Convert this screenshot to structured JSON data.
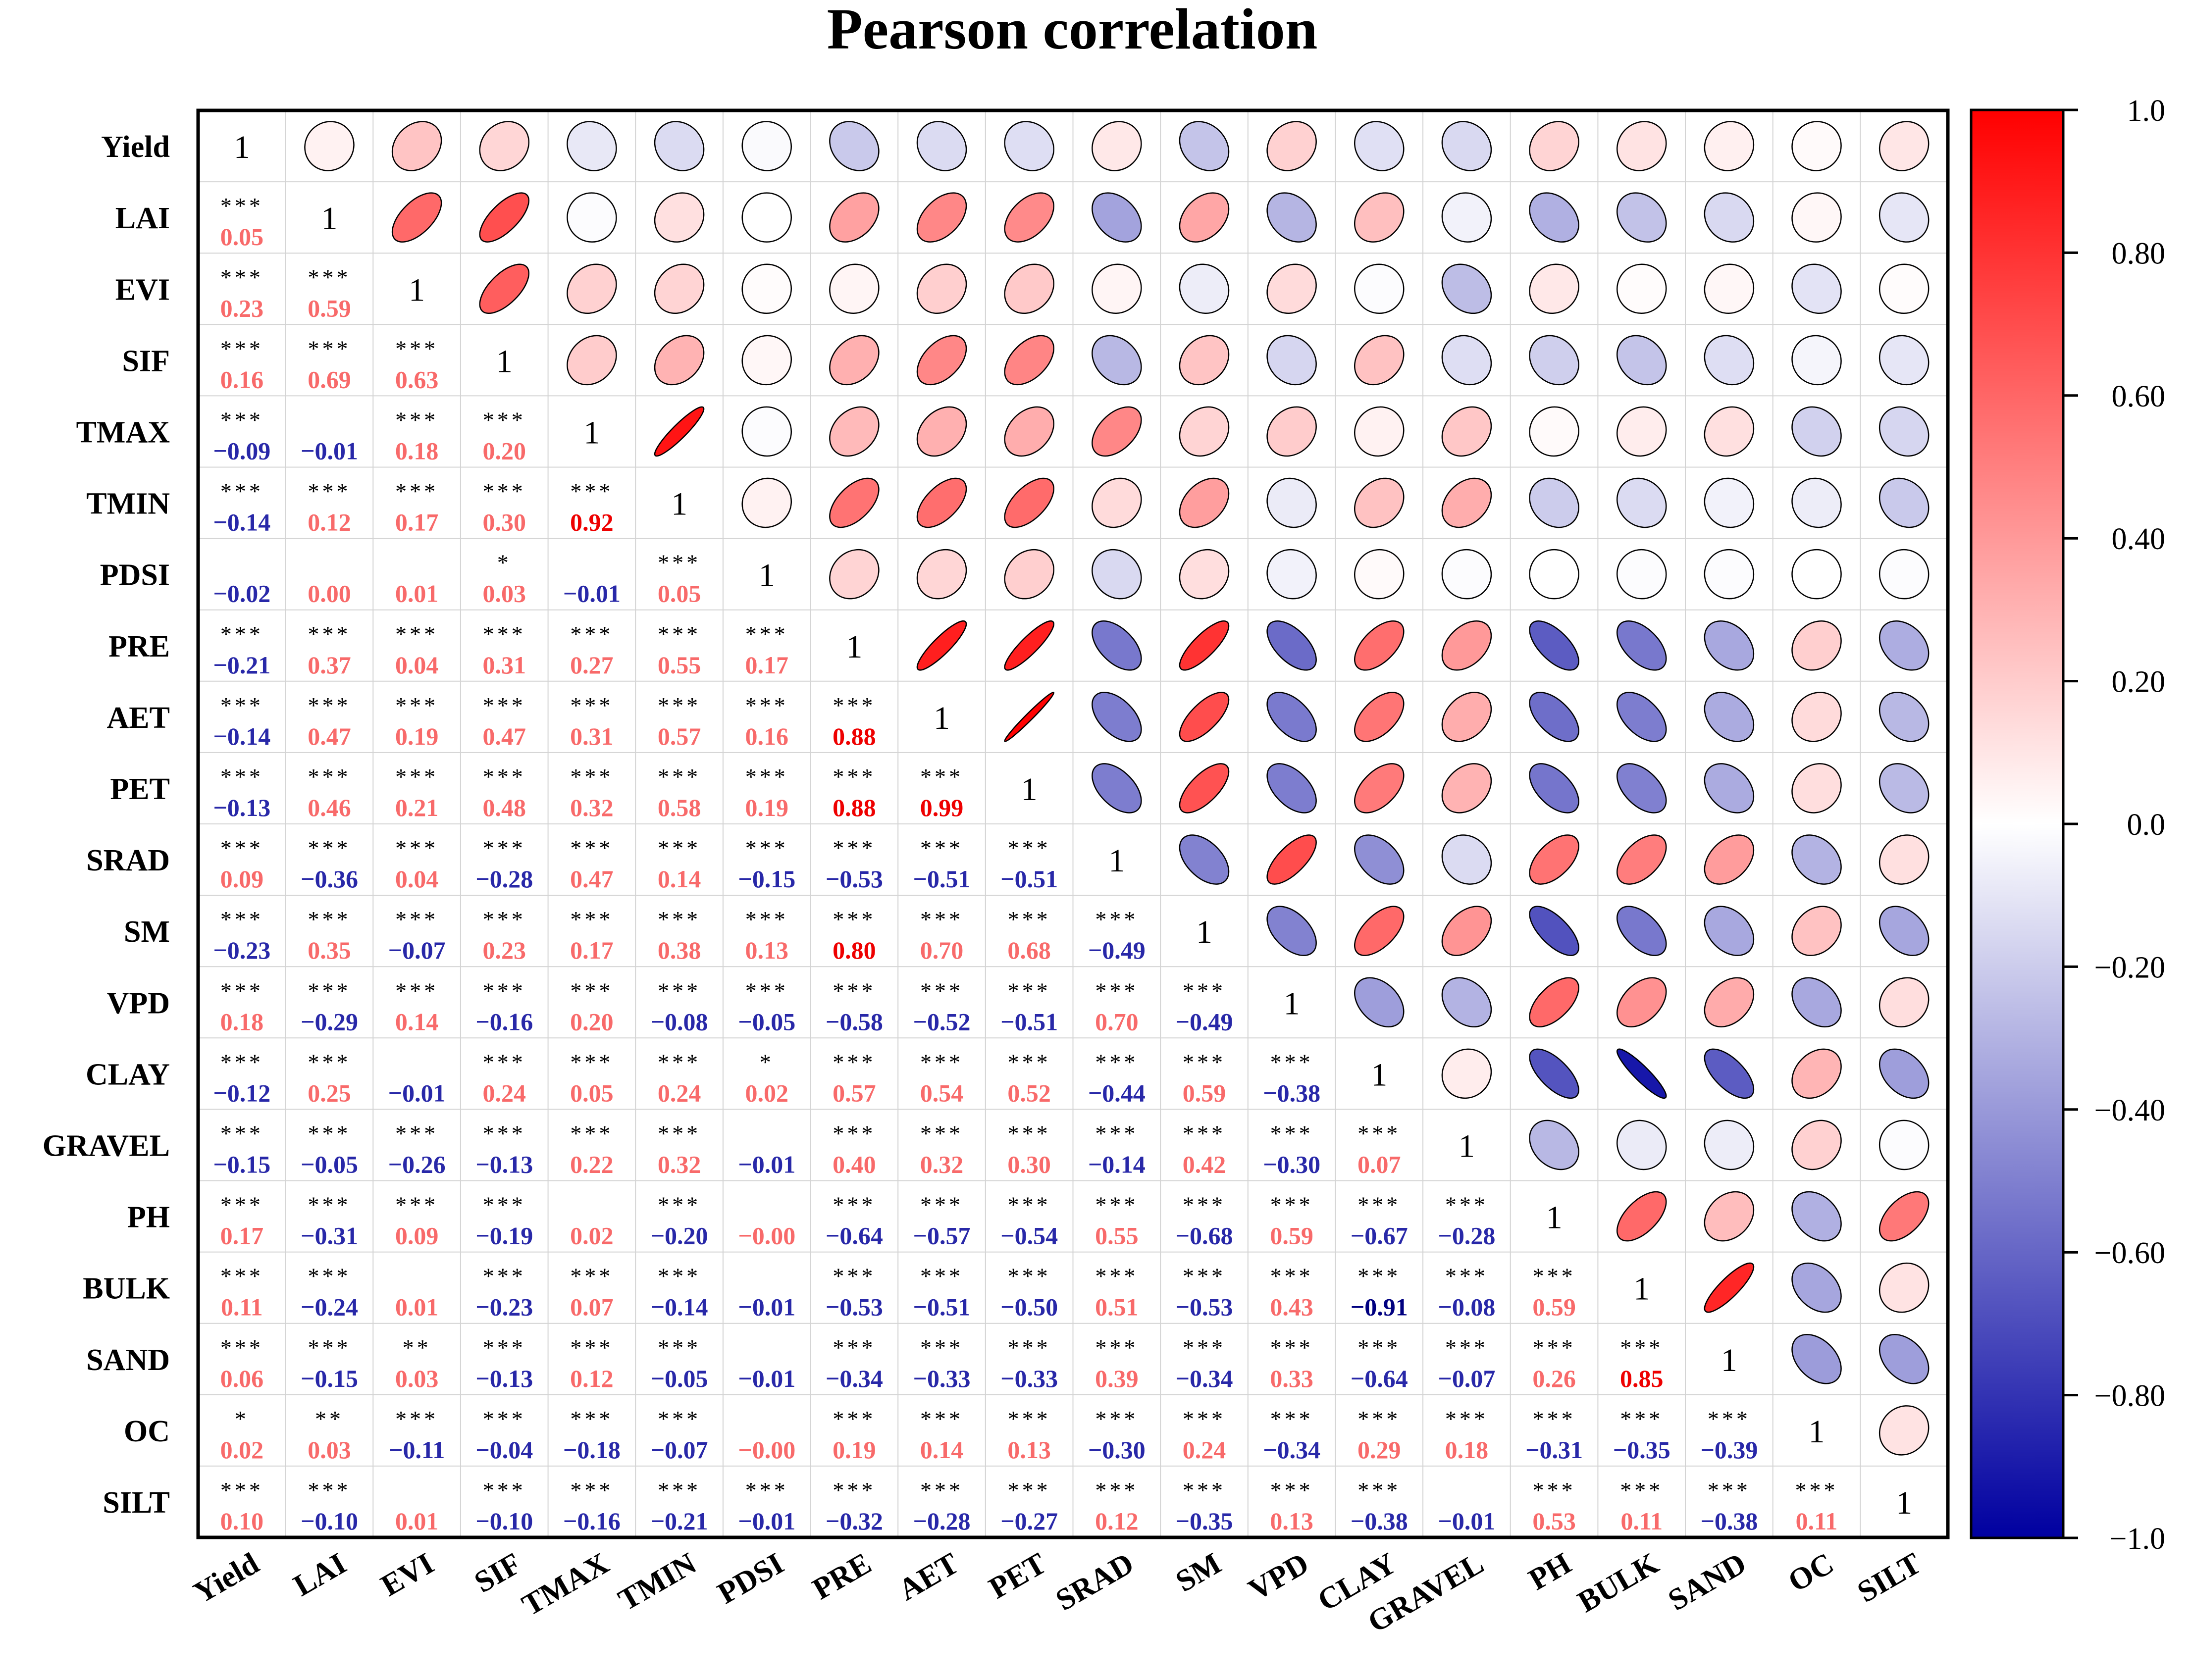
{
  "chart_data": {
    "type": "heatmap",
    "title": "Pearson correlation",
    "variables": [
      "Yield",
      "LAI",
      "EVI",
      "SIF",
      "TMAX",
      "TMIN",
      "PDSI",
      "PRE",
      "AET",
      "PET",
      "SRAD",
      "SM",
      "VPD",
      "CLAY",
      "GRAVEL",
      "PH",
      "BULK",
      "SAND",
      "OC",
      "SILT"
    ],
    "lower": [
      [],
      [
        0.05
      ],
      [
        0.23,
        0.59
      ],
      [
        0.16,
        0.69,
        0.63
      ],
      [
        -0.09,
        -0.01,
        0.18,
        0.2
      ],
      [
        -0.14,
        0.12,
        0.17,
        0.3,
        0.92
      ],
      [
        -0.02,
        0.0,
        0.01,
        0.03,
        -0.01,
        0.05
      ],
      [
        -0.21,
        0.37,
        0.04,
        0.31,
        0.27,
        0.55,
        0.17
      ],
      [
        -0.14,
        0.47,
        0.19,
        0.47,
        0.31,
        0.57,
        0.16,
        0.88
      ],
      [
        -0.13,
        0.46,
        0.21,
        0.48,
        0.32,
        0.58,
        0.19,
        0.88,
        0.99
      ],
      [
        0.09,
        -0.36,
        0.04,
        -0.28,
        0.47,
        0.14,
        -0.15,
        -0.53,
        -0.51,
        -0.51
      ],
      [
        -0.23,
        0.35,
        -0.07,
        0.23,
        0.17,
        0.38,
        0.13,
        0.8,
        0.7,
        0.68,
        -0.49
      ],
      [
        0.18,
        -0.29,
        0.14,
        -0.16,
        0.2,
        -0.08,
        -0.05,
        -0.58,
        -0.52,
        -0.51,
        0.7,
        -0.49
      ],
      [
        -0.12,
        0.25,
        -0.01,
        0.24,
        0.05,
        0.24,
        0.02,
        0.57,
        0.54,
        0.52,
        -0.44,
        0.59,
        -0.38
      ],
      [
        -0.15,
        -0.05,
        -0.26,
        -0.13,
        0.22,
        0.32,
        -0.01,
        0.4,
        0.32,
        0.3,
        -0.14,
        0.42,
        -0.3,
        0.07
      ],
      [
        0.17,
        -0.31,
        0.09,
        -0.19,
        0.02,
        -0.2,
        -0.0,
        -0.64,
        -0.57,
        -0.54,
        0.55,
        -0.68,
        0.59,
        -0.67,
        -0.28
      ],
      [
        0.11,
        -0.24,
        0.01,
        -0.23,
        0.07,
        -0.14,
        -0.01,
        -0.53,
        -0.51,
        -0.5,
        0.51,
        -0.53,
        0.43,
        -0.91,
        -0.08,
        0.59
      ],
      [
        0.06,
        -0.15,
        0.03,
        -0.13,
        0.12,
        -0.05,
        -0.01,
        -0.34,
        -0.33,
        -0.33,
        0.39,
        -0.34,
        0.33,
        -0.64,
        -0.07,
        0.26,
        0.85
      ],
      [
        0.02,
        0.03,
        -0.11,
        -0.04,
        -0.18,
        -0.07,
        -0.0,
        0.19,
        0.14,
        0.13,
        -0.3,
        0.24,
        -0.34,
        0.29,
        0.18,
        -0.31,
        -0.35,
        -0.39
      ],
      [
        0.1,
        -0.1,
        0.01,
        -0.1,
        -0.16,
        -0.21,
        -0.01,
        -0.32,
        -0.28,
        -0.27,
        0.12,
        -0.35,
        0.13,
        -0.38,
        -0.01,
        0.53,
        0.11,
        -0.38,
        0.11
      ]
    ],
    "labels": [
      [],
      [
        "0.05"
      ],
      [
        "0.23",
        "0.59"
      ],
      [
        "0.16",
        "0.69",
        "0.63"
      ],
      [
        "−0.09",
        "−0.01",
        "0.18",
        "0.20"
      ],
      [
        "−0.14",
        "0.12",
        "0.17",
        "0.30",
        "0.92"
      ],
      [
        "−0.02",
        "0.00",
        "0.01",
        "0.03",
        "−0.01",
        "0.05"
      ],
      [
        "−0.21",
        "0.37",
        "0.04",
        "0.31",
        "0.27",
        "0.55",
        "0.17"
      ],
      [
        "−0.14",
        "0.47",
        "0.19",
        "0.47",
        "0.31",
        "0.57",
        "0.16",
        "0.88"
      ],
      [
        "−0.13",
        "0.46",
        "0.21",
        "0.48",
        "0.32",
        "0.58",
        "0.19",
        "0.88",
        "0.99"
      ],
      [
        "0.09",
        "−0.36",
        "0.04",
        "−0.28",
        "0.47",
        "0.14",
        "−0.15",
        "−0.53",
        "−0.51",
        "−0.51"
      ],
      [
        "−0.23",
        "0.35",
        "−0.07",
        "0.23",
        "0.17",
        "0.38",
        "0.13",
        "0.80",
        "0.70",
        "0.68",
        "−0.49"
      ],
      [
        "0.18",
        "−0.29",
        "0.14",
        "−0.16",
        "0.20",
        "−0.08",
        "−0.05",
        "−0.58",
        "−0.52",
        "−0.51",
        "0.70",
        "−0.49"
      ],
      [
        "−0.12",
        "0.25",
        "−0.01",
        "0.24",
        "0.05",
        "0.24",
        "0.02",
        "0.57",
        "0.54",
        "0.52",
        "−0.44",
        "0.59",
        "−0.38"
      ],
      [
        "−0.15",
        "−0.05",
        "−0.26",
        "−0.13",
        "0.22",
        "0.32",
        "−0.01",
        "0.40",
        "0.32",
        "0.30",
        "−0.14",
        "0.42",
        "−0.30",
        "0.07"
      ],
      [
        "0.17",
        "−0.31",
        "0.09",
        "−0.19",
        "0.02",
        "−0.20",
        "−0.00",
        "−0.64",
        "−0.57",
        "−0.54",
        "0.55",
        "−0.68",
        "0.59",
        "−0.67",
        "−0.28"
      ],
      [
        "0.11",
        "−0.24",
        "0.01",
        "−0.23",
        "0.07",
        "−0.14",
        "−0.01",
        "−0.53",
        "−0.51",
        "−0.50",
        "0.51",
        "−0.53",
        "0.43",
        "−0.91",
        "−0.08",
        "0.59"
      ],
      [
        "0.06",
        "−0.15",
        "0.03",
        "−0.13",
        "0.12",
        "−0.05",
        "−0.01",
        "−0.34",
        "−0.33",
        "−0.33",
        "0.39",
        "−0.34",
        "0.33",
        "−0.64",
        "−0.07",
        "0.26",
        "0.85"
      ],
      [
        "0.02",
        "0.03",
        "−0.11",
        "−0.04",
        "−0.18",
        "−0.07",
        "−0.00",
        "0.19",
        "0.14",
        "0.13",
        "−0.30",
        "0.24",
        "−0.34",
        "0.29",
        "0.18",
        "−0.31",
        "−0.35",
        "−0.39"
      ],
      [
        "0.10",
        "−0.10",
        "0.01",
        "−0.10",
        "−0.16",
        "−0.21",
        "−0.01",
        "−0.32",
        "−0.28",
        "−0.27",
        "0.12",
        "−0.35",
        "0.13",
        "−0.38",
        "−0.01",
        "0.53",
        "0.11",
        "−0.38",
        "0.11"
      ]
    ],
    "significance": [
      [],
      [
        "***"
      ],
      [
        "***",
        "***"
      ],
      [
        "***",
        "***",
        "***"
      ],
      [
        "***",
        "",
        "***",
        "***"
      ],
      [
        "***",
        "***",
        "***",
        "***",
        "***"
      ],
      [
        "",
        "",
        "",
        "*",
        "",
        "***"
      ],
      [
        "***",
        "***",
        "***",
        "***",
        "***",
        "***",
        "***"
      ],
      [
        "***",
        "***",
        "***",
        "***",
        "***",
        "***",
        "***",
        "***"
      ],
      [
        "***",
        "***",
        "***",
        "***",
        "***",
        "***",
        "***",
        "***",
        "***"
      ],
      [
        "***",
        "***",
        "***",
        "***",
        "***",
        "***",
        "***",
        "***",
        "***",
        "***"
      ],
      [
        "***",
        "***",
        "***",
        "***",
        "***",
        "***",
        "***",
        "***",
        "***",
        "***",
        "***"
      ],
      [
        "***",
        "***",
        "***",
        "***",
        "***",
        "***",
        "***",
        "***",
        "***",
        "***",
        "***",
        "***"
      ],
      [
        "***",
        "***",
        "",
        "***",
        "***",
        "***",
        "*",
        "***",
        "***",
        "***",
        "***",
        "***",
        "***"
      ],
      [
        "***",
        "***",
        "***",
        "***",
        "***",
        "***",
        "",
        "***",
        "***",
        "***",
        "***",
        "***",
        "***",
        "***"
      ],
      [
        "***",
        "***",
        "***",
        "***",
        "",
        "***",
        "",
        "***",
        "***",
        "***",
        "***",
        "***",
        "***",
        "***",
        "***"
      ],
      [
        "***",
        "***",
        "",
        "***",
        "***",
        "***",
        "",
        "***",
        "***",
        "***",
        "***",
        "***",
        "***",
        "***",
        "***",
        "***"
      ],
      [
        "***",
        "***",
        "**",
        "***",
        "***",
        "***",
        "",
        "***",
        "***",
        "***",
        "***",
        "***",
        "***",
        "***",
        "***",
        "***",
        "***"
      ],
      [
        "*",
        "**",
        "***",
        "***",
        "***",
        "***",
        "",
        "***",
        "***",
        "***",
        "***",
        "***",
        "***",
        "***",
        "***",
        "***",
        "***",
        "***"
      ],
      [
        "***",
        "***",
        "",
        "***",
        "***",
        "***",
        "***",
        "***",
        "***",
        "***",
        "***",
        "***",
        "***",
        "***",
        "",
        "***",
        "***",
        "***",
        "***"
      ]
    ],
    "diagonal_label": "1",
    "colorbar": {
      "ticks": [
        1.0,
        0.8,
        0.6,
        0.4,
        0.2,
        0.0,
        -0.2,
        -0.4,
        -0.6,
        -0.8,
        -1.0
      ],
      "tick_labels": [
        "1.0",
        "0.80",
        "0.60",
        "0.40",
        "0.20",
        "0.0",
        "−0.20",
        "−0.40",
        "−0.60",
        "−0.80",
        "−1.0"
      ],
      "range": [
        -1.0,
        1.0
      ],
      "colors": {
        "negative": "#0000a0",
        "zero": "#ffffff",
        "positive": "#ff0000"
      }
    },
    "strong_threshold": 0.8,
    "text_colors": {
      "positive": "#f86a6a",
      "negative": "#2828a8",
      "strong_positive": "#ee0000",
      "strong_negative": "#000080",
      "stars": "#000000"
    }
  }
}
